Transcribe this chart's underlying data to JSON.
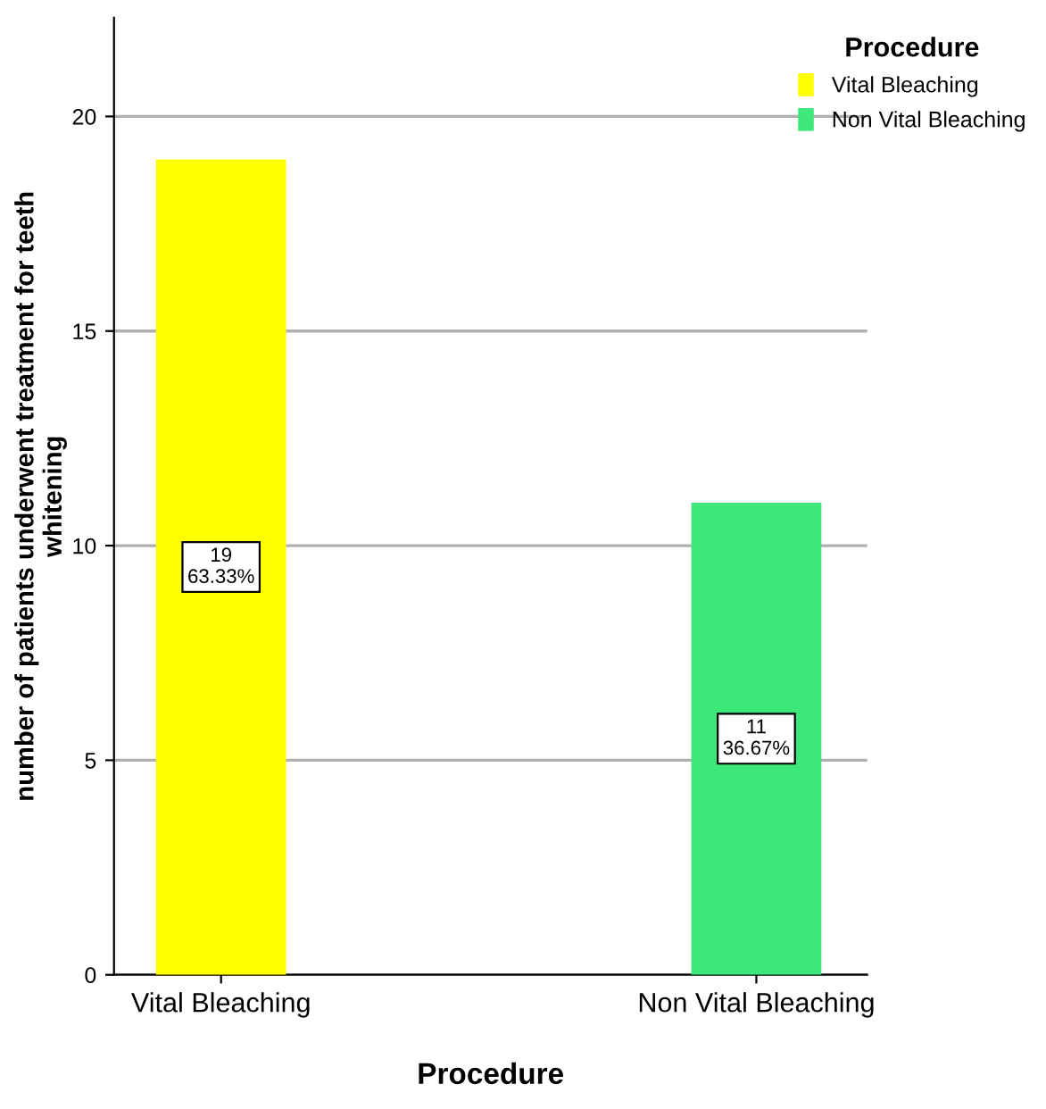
{
  "chart_data": {
    "type": "bar",
    "categories": [
      "Vital Bleaching",
      "Non Vital Bleaching"
    ],
    "series": [
      {
        "name": "Vital Bleaching",
        "color": "#ffff00",
        "values": [
          19,
          null
        ],
        "value_labels": [
          "19\n63.33%",
          null
        ]
      },
      {
        "name": "Non Vital Bleaching",
        "color": "#3de87a",
        "values": [
          null,
          11
        ],
        "value_labels": [
          null,
          "11\n36.67%"
        ]
      }
    ],
    "xlabel": "Procedure",
    "ylabel": "number of patients underwent treatment for teeth\nwhitening",
    "legend_title": "Procedure",
    "legend": "top right",
    "ylim": [
      0,
      22.3
    ],
    "yticks": [
      0,
      5,
      10,
      15,
      20
    ],
    "grid": "y"
  }
}
